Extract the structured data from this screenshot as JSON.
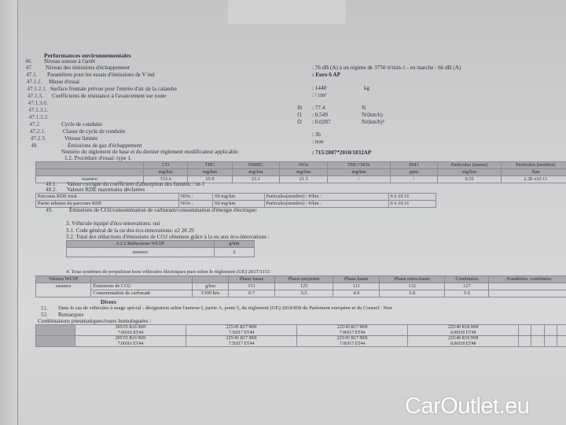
{
  "section_title": "Performances environnementales",
  "items": [
    {
      "num": "46.",
      "label": "Niveau sonore à l'arrêt"
    },
    {
      "num": "47.",
      "label": "Niveau des émissions d'échappement"
    },
    {
      "num": "47.1.",
      "label": "Paramètres pour les essais d'émissions de V ind"
    },
    {
      "num": "47.1.1.",
      "label": "Masse d'essai"
    },
    {
      "num": "47.1.2.1.",
      "label": "Surface frontale prévue pour l'entrée d'air de la calandre"
    },
    {
      "num": "47.1.3.",
      "label": "Coefficients de résistance à l'avancement sur route"
    },
    {
      "num": "47.1.3.0.",
      "label": ""
    },
    {
      "num": "47.1.3.1.",
      "label": ""
    },
    {
      "num": "47.1.3.2.",
      "label": ""
    },
    {
      "num": "47.2.",
      "label": "Cycle de conduite"
    },
    {
      "num": "47.2.1.",
      "label": "Classe de cycle de conduite"
    },
    {
      "num": "47.2.3.",
      "label": "Vitesse limitée"
    },
    {
      "num": "48.",
      "label": "Émissions de gaz d'échappement"
    }
  ],
  "regulation_label": "Numéro du règlement de base et du dernier règlement modificateur applicable",
  "procedure_label": "1.2. Procédure d'essai: type 1.",
  "values": {
    "noise": ": 76 dB (A)  à un régime de 3750 tr/min-1 - en marche :  66 dB (A)",
    "euro": ": Euro 6 AP",
    "mass": ": 1440",
    "mass_unit": "kg",
    "surface": ": / cm²",
    "f0_label": "f0",
    "f0": ": 77.4",
    "f0_unit": "N",
    "f1_label": "f1",
    "f1": ": 0.549",
    "f1_unit": "N/(km/h)",
    "f2_label": "f2",
    "f2": ": 0.0287",
    "f2_unit": "N/(km/h)²",
    "cycle_class": ": 3b",
    "speed_limited": ": non",
    "regulation": ": 715/2007*2018/1832AP"
  },
  "emissions_table": {
    "headers": [
      [
        "",
        ""
      ],
      [
        "CO",
        "mg/km"
      ],
      [
        "THC",
        "mg/km"
      ],
      [
        "NMHC",
        "mg/km"
      ],
      [
        "NOx",
        "mg/km"
      ],
      [
        "THC+NOx",
        "mg/km"
      ],
      [
        "NH3",
        "ppm"
      ],
      [
        "Particules (masse)",
        "mg/km"
      ],
      [
        "Particules (nombre)",
        "/km"
      ]
    ],
    "row": [
      "essence",
      "333.6",
      "25.9",
      "23.1",
      "21.5",
      "/",
      "/",
      "0.55",
      "2.28 x10 11"
    ]
  },
  "item_48_1": {
    "num": "48.1.",
    "label": "Valeur corrigée du coefficient d'absorption des fumées: / m-1"
  },
  "item_48_2": {
    "num": "48.2.",
    "label": "Valeurs RDE maximales déclarées"
  },
  "rde_table": [
    [
      "Parcours RDE total",
      "NOx :",
      "60 mg/km",
      "Particules(nombre) : #/km :",
      "6 x 10 11"
    ],
    [
      "Partie urbaine du parcours RDE",
      "NOx :",
      "60 mg/km",
      "Particules(nombre) : #/km :",
      "6 x 10 11"
    ]
  ],
  "item_49": {
    "num": "49.",
    "label": "Émissions de CO2/consommation de carburant/consommation d'énergie électrique:"
  },
  "eco": {
    "line3": "3. Véhicule équipé d'éco-innovations: oui",
    "line3_1": "3.1. Code général de la ou des éco-innovations: e2 28 29",
    "line3_2": "3.2. Total des réductions d'émissions de CO2 obtenues grâce à la ou aux éco-innovations :",
    "table_headers": [
      "3.2.2 Réductions WLTP",
      "g/km"
    ],
    "table_row": [
      "essence",
      "2"
    ]
  },
  "wltp": {
    "title": "4. Tous systèmes de propulsion hors véhicules électriques purs selon le règlement (UE) 2017/1151",
    "headers": [
      "Valeurs WLTP",
      "",
      "",
      "Phase basse",
      "Phase moyenne",
      "Phase haute",
      "Phase extra-haute",
      "Combinées",
      "Pondérées, combinées"
    ],
    "fuel": "essence",
    "rows": [
      [
        "Émissions de CO2",
        "g/km",
        "151",
        "125",
        "111",
        "132",
        "127",
        ""
      ],
      [
        "Consommation de carburant",
        "l/100 km",
        "6.7",
        "5.5",
        "4.9",
        "5.8",
        "5.6",
        ""
      ]
    ]
  },
  "divers": {
    "title": "Divers",
    "item_51": {
      "num": "51.",
      "label": "Dans le cas de véhicules à usage spécial : désignation selon l'annexe I, partie A, point 5, du règlement (UE) 2018/858 du Parlement européen et du Conseil : Non"
    },
    "item_52": {
      "num": "52.",
      "label": "Remarques"
    },
    "tyres_label": "Combinaisons pneumatiques/roues homologuées :",
    "tyres": [
      [
        {
          "tyre": "205/55 R16 90H",
          "rim": "7.00J16 ET44"
        },
        {
          "tyre": "225/45 R17 90H",
          "rim": "7.50J17 ET44"
        },
        {
          "tyre": "225/45 R17 90H",
          "rim": "7.00J17 ET44"
        },
        {
          "tyre": "225/40 R18 90H",
          "rim": "8.00J18 ET48"
        }
      ],
      [
        {
          "tyre": "205/55 R16 90H",
          "rim": "7.00J16 ET44"
        },
        {
          "tyre": "225/45 R17 90H",
          "rim": "7.50J17 ET44"
        },
        {
          "tyre": "225/45 R17 90H",
          "rim": "7.00J17 ET44"
        },
        {
          "tyre": "225/40 R18 90H",
          "rim": "8.00J18 ET48"
        }
      ]
    ]
  },
  "watermark": "CarOutlet.eu"
}
